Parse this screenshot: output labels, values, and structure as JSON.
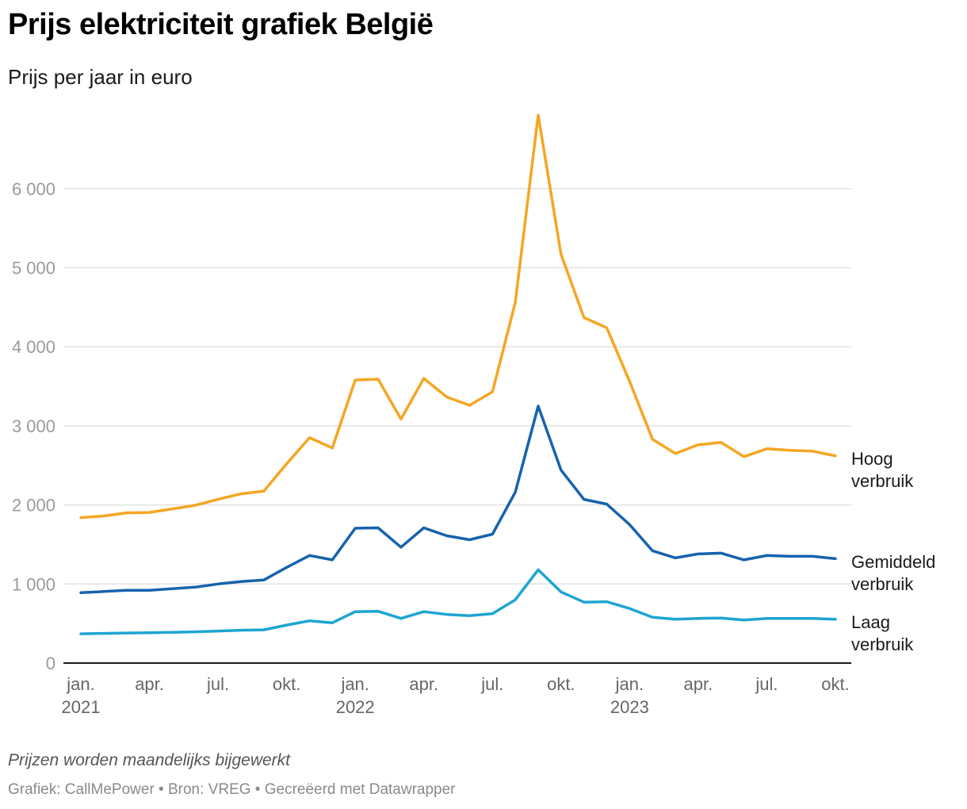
{
  "header": {
    "title": "Prijs elektriciteit grafiek België",
    "subtitle": "Prijs per jaar in euro"
  },
  "footer": {
    "note": "Prijzen worden maandelijks bijgewerkt",
    "source": "Grafiek: CallMePower • Bron: VREG • Gecreëerd met Datawrapper"
  },
  "chart_data": {
    "type": "line",
    "title": "Prijs elektriciteit grafiek België",
    "subtitle": "Prijs per jaar in euro",
    "xlabel": "",
    "ylabel": "",
    "ylim": [
      0,
      7000
    ],
    "grid": true,
    "legend": "direct labels at right end of lines",
    "y_ticks": [
      {
        "value": 0,
        "label": "0"
      },
      {
        "value": 1000,
        "label": "1 000"
      },
      {
        "value": 2000,
        "label": "2 000"
      },
      {
        "value": 3000,
        "label": "3 000"
      },
      {
        "value": 4000,
        "label": "4 000"
      },
      {
        "value": 5000,
        "label": "5 000"
      },
      {
        "value": 6000,
        "label": "6 000"
      }
    ],
    "x": [
      "2021-01",
      "2021-02",
      "2021-03",
      "2021-04",
      "2021-05",
      "2021-06",
      "2021-07",
      "2021-08",
      "2021-09",
      "2021-10",
      "2021-11",
      "2021-12",
      "2022-01",
      "2022-02",
      "2022-03",
      "2022-04",
      "2022-05",
      "2022-06",
      "2022-07",
      "2022-08",
      "2022-09",
      "2022-10",
      "2022-11",
      "2022-12",
      "2023-01",
      "2023-02",
      "2023-03",
      "2023-04",
      "2023-05",
      "2023-06",
      "2023-07",
      "2023-08",
      "2023-09",
      "2023-10"
    ],
    "x_ticks": [
      {
        "index": 0,
        "label": "jan.",
        "year": "2021"
      },
      {
        "index": 3,
        "label": "apr.",
        "year": ""
      },
      {
        "index": 6,
        "label": "jul.",
        "year": ""
      },
      {
        "index": 9,
        "label": "okt.",
        "year": ""
      },
      {
        "index": 12,
        "label": "jan.",
        "year": "2022"
      },
      {
        "index": 15,
        "label": "apr.",
        "year": ""
      },
      {
        "index": 18,
        "label": "jul.",
        "year": ""
      },
      {
        "index": 21,
        "label": "okt.",
        "year": ""
      },
      {
        "index": 24,
        "label": "jan.",
        "year": "2023"
      },
      {
        "index": 27,
        "label": "apr.",
        "year": ""
      },
      {
        "index": 30,
        "label": "jul.",
        "year": ""
      },
      {
        "index": 33,
        "label": "okt.",
        "year": ""
      }
    ],
    "series": [
      {
        "name": "Hoog verbruik",
        "label_lines": [
          "Hoog",
          "verbruik"
        ],
        "color": "#f5a623",
        "values": [
          1840,
          1860,
          1900,
          1905,
          1950,
          1995,
          2070,
          2140,
          2175,
          2520,
          2850,
          2720,
          3580,
          3590,
          3085,
          3600,
          3365,
          3260,
          3430,
          4560,
          6930,
          5170,
          4370,
          4240,
          3560,
          2830,
          2650,
          2760,
          2790,
          2610,
          2710,
          2690,
          2680,
          2620
        ]
      },
      {
        "name": "Gemiddeld verbruik",
        "label_lines": [
          "Gemiddeld",
          "verbruik"
        ],
        "color": "#1763ad",
        "values": [
          890,
          905,
          920,
          920,
          940,
          960,
          1000,
          1030,
          1050,
          1210,
          1360,
          1305,
          1705,
          1710,
          1465,
          1710,
          1610,
          1560,
          1630,
          2160,
          3250,
          2440,
          2070,
          2010,
          1750,
          1420,
          1330,
          1380,
          1390,
          1305,
          1360,
          1350,
          1350,
          1320
        ]
      },
      {
        "name": "Laag verbruik",
        "label_lines": [
          "Laag",
          "verbruik"
        ],
        "color": "#1ea5d2",
        "values": [
          370,
          375,
          380,
          383,
          388,
          395,
          405,
          415,
          420,
          480,
          535,
          510,
          650,
          655,
          565,
          650,
          615,
          600,
          625,
          800,
          1180,
          900,
          770,
          775,
          690,
          580,
          555,
          565,
          570,
          545,
          565,
          565,
          565,
          555
        ]
      }
    ]
  }
}
